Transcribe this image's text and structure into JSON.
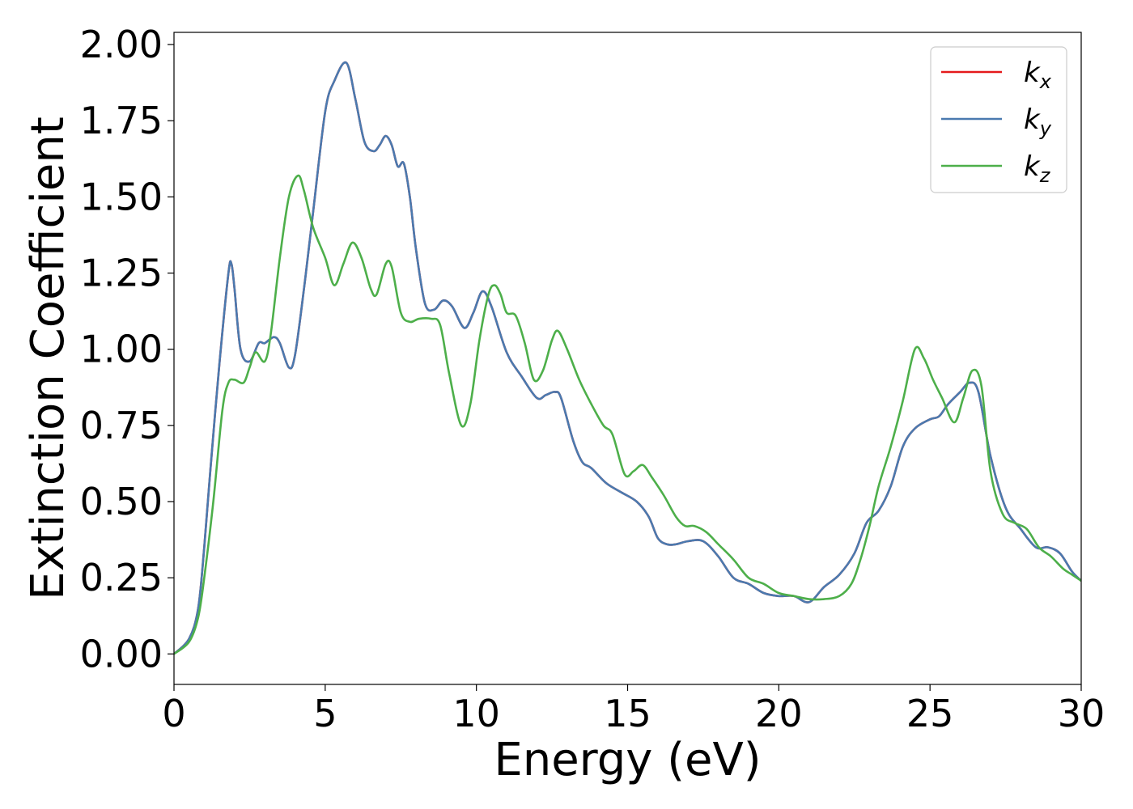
{
  "chart_data": {
    "type": "line",
    "title": "",
    "xlabel": "Energy (eV)",
    "ylabel": "Extinction Coefficient",
    "xlim": [
      0,
      30
    ],
    "ylim": [
      -0.1,
      2.04
    ],
    "xticks": [
      0,
      5,
      10,
      15,
      20,
      25,
      30
    ],
    "xtick_labels": [
      "0",
      "5",
      "10",
      "15",
      "20",
      "25",
      "30"
    ],
    "yticks": [
      0,
      0.25,
      0.5,
      0.75,
      1.0,
      1.25,
      1.5,
      1.75,
      2.0
    ],
    "ytick_labels": [
      "0.00",
      "0.25",
      "0.50",
      "0.75",
      "1.00",
      "1.25",
      "1.50",
      "1.75",
      "2.00"
    ],
    "grid": false,
    "legend_position": "top-right",
    "series": [
      {
        "name": "k_x",
        "label_main": "k",
        "label_sub": "x",
        "color": "#e41a1c",
        "x": [
          0,
          0.5,
          0.8,
          1.0,
          1.2,
          1.5,
          1.8,
          1.9,
          2.0,
          2.2,
          2.5,
          2.8,
          3.0,
          3.3,
          3.5,
          3.8,
          4.0,
          4.3,
          4.6,
          5.0,
          5.3,
          5.7,
          6.0,
          6.3,
          6.6,
          6.8,
          7.0,
          7.2,
          7.4,
          7.6,
          7.8,
          8.0,
          8.3,
          8.6,
          8.9,
          9.2,
          9.6,
          9.9,
          10.2,
          10.5,
          11.0,
          11.5,
          12.0,
          12.3,
          12.6,
          12.8,
          13.2,
          13.5,
          13.8,
          14.3,
          14.8,
          15.3,
          15.7,
          16.0,
          16.3,
          16.6,
          17.0,
          17.5,
          18.0,
          18.5,
          19.0,
          19.5,
          20.0,
          20.5,
          21.0,
          21.5,
          22.0,
          22.5,
          22.9,
          23.3,
          23.7,
          24.1,
          24.5,
          25.0,
          25.3,
          25.6,
          26.0,
          26.3,
          26.6,
          27.0,
          27.5,
          28.0,
          28.5,
          28.9,
          29.3,
          29.7,
          30.0
        ],
        "values": [
          0,
          0.05,
          0.15,
          0.35,
          0.6,
          0.95,
          1.25,
          1.28,
          1.2,
          1.0,
          0.96,
          1.02,
          1.02,
          1.04,
          1.02,
          0.94,
          0.98,
          1.2,
          1.45,
          1.78,
          1.88,
          1.94,
          1.82,
          1.68,
          1.65,
          1.67,
          1.7,
          1.67,
          1.6,
          1.61,
          1.5,
          1.33,
          1.15,
          1.13,
          1.16,
          1.14,
          1.07,
          1.12,
          1.19,
          1.14,
          0.99,
          0.91,
          0.84,
          0.85,
          0.86,
          0.84,
          0.7,
          0.63,
          0.61,
          0.56,
          0.53,
          0.5,
          0.45,
          0.38,
          0.36,
          0.36,
          0.37,
          0.37,
          0.32,
          0.25,
          0.23,
          0.2,
          0.19,
          0.19,
          0.17,
          0.22,
          0.26,
          0.33,
          0.43,
          0.47,
          0.55,
          0.68,
          0.74,
          0.77,
          0.78,
          0.82,
          0.86,
          0.89,
          0.86,
          0.65,
          0.48,
          0.41,
          0.35,
          0.35,
          0.33,
          0.27,
          0.24
        ]
      },
      {
        "name": "k_y",
        "label_main": "k",
        "label_sub": "y",
        "color": "#4a7aaf",
        "x": [
          0,
          0.5,
          0.8,
          1.0,
          1.2,
          1.5,
          1.8,
          1.9,
          2.0,
          2.2,
          2.5,
          2.8,
          3.0,
          3.3,
          3.5,
          3.8,
          4.0,
          4.3,
          4.6,
          5.0,
          5.3,
          5.7,
          6.0,
          6.3,
          6.6,
          6.8,
          7.0,
          7.2,
          7.4,
          7.6,
          7.8,
          8.0,
          8.3,
          8.6,
          8.9,
          9.2,
          9.6,
          9.9,
          10.2,
          10.5,
          11.0,
          11.5,
          12.0,
          12.3,
          12.6,
          12.8,
          13.2,
          13.5,
          13.8,
          14.3,
          14.8,
          15.3,
          15.7,
          16.0,
          16.3,
          16.6,
          17.0,
          17.5,
          18.0,
          18.5,
          19.0,
          19.5,
          20.0,
          20.5,
          21.0,
          21.5,
          22.0,
          22.5,
          22.9,
          23.3,
          23.7,
          24.1,
          24.5,
          25.0,
          25.3,
          25.6,
          26.0,
          26.3,
          26.6,
          27.0,
          27.5,
          28.0,
          28.5,
          28.9,
          29.3,
          29.7,
          30.0
        ],
        "values": [
          0,
          0.05,
          0.15,
          0.35,
          0.6,
          0.95,
          1.25,
          1.28,
          1.2,
          1.0,
          0.96,
          1.02,
          1.02,
          1.04,
          1.02,
          0.94,
          0.98,
          1.2,
          1.45,
          1.78,
          1.88,
          1.94,
          1.82,
          1.68,
          1.65,
          1.67,
          1.7,
          1.67,
          1.6,
          1.61,
          1.5,
          1.33,
          1.15,
          1.13,
          1.16,
          1.14,
          1.07,
          1.12,
          1.19,
          1.14,
          0.99,
          0.91,
          0.84,
          0.85,
          0.86,
          0.84,
          0.7,
          0.63,
          0.61,
          0.56,
          0.53,
          0.5,
          0.45,
          0.38,
          0.36,
          0.36,
          0.37,
          0.37,
          0.32,
          0.25,
          0.23,
          0.2,
          0.19,
          0.19,
          0.17,
          0.22,
          0.26,
          0.33,
          0.43,
          0.47,
          0.55,
          0.68,
          0.74,
          0.77,
          0.78,
          0.82,
          0.86,
          0.89,
          0.86,
          0.65,
          0.48,
          0.41,
          0.35,
          0.35,
          0.33,
          0.27,
          0.24
        ]
      },
      {
        "name": "k_z",
        "label_main": "k",
        "label_sub": "z",
        "color": "#4daf4a",
        "x": [
          0,
          0.5,
          0.8,
          1.0,
          1.3,
          1.6,
          1.8,
          2.0,
          2.3,
          2.5,
          2.7,
          3.0,
          3.2,
          3.5,
          3.8,
          4.1,
          4.3,
          4.6,
          5.0,
          5.3,
          5.6,
          5.9,
          6.2,
          6.5,
          6.7,
          7.0,
          7.2,
          7.5,
          7.8,
          8.1,
          8.5,
          8.8,
          9.1,
          9.5,
          9.8,
          10.1,
          10.4,
          10.6,
          10.8,
          11.0,
          11.3,
          11.6,
          11.9,
          12.2,
          12.5,
          12.7,
          13.0,
          13.4,
          13.8,
          14.2,
          14.5,
          14.9,
          15.2,
          15.5,
          15.8,
          16.2,
          16.6,
          16.9,
          17.2,
          17.6,
          18.0,
          18.5,
          19.0,
          19.5,
          20.0,
          20.5,
          21.0,
          21.5,
          22.0,
          22.4,
          22.7,
          23.0,
          23.3,
          23.7,
          24.1,
          24.5,
          24.8,
          25.1,
          25.4,
          25.8,
          26.1,
          26.4,
          26.7,
          27.0,
          27.4,
          27.8,
          28.2,
          28.6,
          29.0,
          29.4,
          29.7,
          30.0
        ],
        "values": [
          0,
          0.04,
          0.12,
          0.25,
          0.5,
          0.8,
          0.89,
          0.9,
          0.89,
          0.94,
          0.99,
          0.96,
          1.05,
          1.3,
          1.5,
          1.57,
          1.52,
          1.4,
          1.3,
          1.21,
          1.28,
          1.35,
          1.3,
          1.2,
          1.18,
          1.28,
          1.27,
          1.12,
          1.09,
          1.1,
          1.1,
          1.08,
          0.92,
          0.75,
          0.82,
          1.03,
          1.18,
          1.21,
          1.18,
          1.12,
          1.11,
          1.02,
          0.9,
          0.93,
          1.03,
          1.06,
          1.0,
          0.9,
          0.82,
          0.75,
          0.72,
          0.59,
          0.6,
          0.62,
          0.58,
          0.52,
          0.45,
          0.42,
          0.42,
          0.4,
          0.36,
          0.31,
          0.25,
          0.23,
          0.2,
          0.19,
          0.18,
          0.18,
          0.19,
          0.23,
          0.31,
          0.42,
          0.55,
          0.68,
          0.83,
          1.0,
          0.97,
          0.9,
          0.84,
          0.76,
          0.84,
          0.93,
          0.88,
          0.6,
          0.46,
          0.43,
          0.41,
          0.35,
          0.32,
          0.28,
          0.26,
          0.24
        ]
      }
    ]
  }
}
